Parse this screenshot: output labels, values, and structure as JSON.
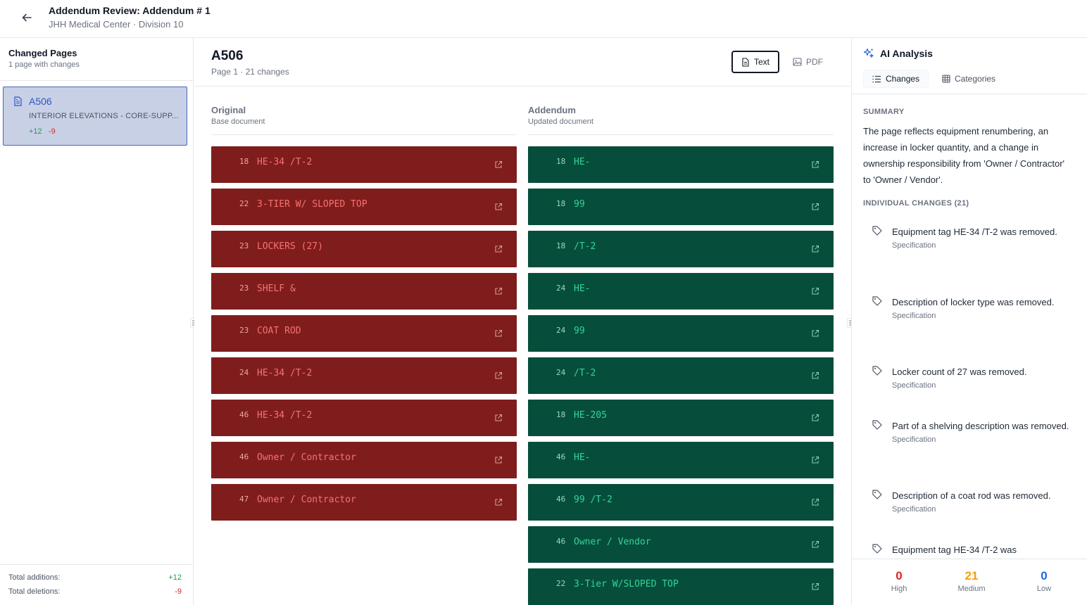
{
  "header": {
    "title": "Addendum Review: Addendum # 1",
    "subtitle": "JHH Medical Center · Division 10"
  },
  "left_panel": {
    "title": "Changed Pages",
    "subtitle": "1 page with changes",
    "pages": [
      {
        "name": "A506",
        "description": "INTERIOR ELEVATIONS - CORE-SUPP...",
        "additions": "+12",
        "deletions": "-9"
      }
    ],
    "footer": {
      "additions_label": "Total additions:",
      "additions_value": "+12",
      "deletions_label": "Total deletions:",
      "deletions_value": "-9"
    }
  },
  "main": {
    "page_title": "A506",
    "page_sub": "Page 1 · 21 changes",
    "view_text_label": "Text",
    "view_pdf_label": "PDF",
    "original": {
      "title": "Original",
      "subtitle": "Base document",
      "rows": [
        {
          "line": "18",
          "text": "HE-34 /T-2"
        },
        {
          "line": "22",
          "text": "3-TIER W/ SLOPED TOP"
        },
        {
          "line": "23",
          "text": "LOCKERS (27)"
        },
        {
          "line": "23",
          "text": "SHELF &"
        },
        {
          "line": "23",
          "text": "COAT ROD"
        },
        {
          "line": "24",
          "text": "HE-34 /T-2"
        },
        {
          "line": "46",
          "text": "HE-34 /T-2"
        },
        {
          "line": "46",
          "text": "Owner / Contractor"
        },
        {
          "line": "47",
          "text": "Owner / Contractor"
        }
      ]
    },
    "addendum": {
      "title": "Addendum",
      "subtitle": "Updated document",
      "rows": [
        {
          "line": "18",
          "text": "HE-"
        },
        {
          "line": "18",
          "text": "99"
        },
        {
          "line": "18",
          "text": "/T-2"
        },
        {
          "line": "24",
          "text": "HE-"
        },
        {
          "line": "24",
          "text": "99"
        },
        {
          "line": "24",
          "text": "/T-2"
        },
        {
          "line": "18",
          "text": "HE-205"
        },
        {
          "line": "46",
          "text": "HE-"
        },
        {
          "line": "46",
          "text": "99 /T-2"
        },
        {
          "line": "46",
          "text": "Owner / Vendor"
        },
        {
          "line": "22",
          "text": "3-Tier W/SLOPED TOP"
        }
      ]
    }
  },
  "ai_panel": {
    "title": "AI Analysis",
    "tabs": {
      "changes": "Changes",
      "categories": "Categories"
    },
    "summary_label": "SUMMARY",
    "summary_text": "The page reflects equipment renumbering, an increase in locker quantity, and a change in ownership responsibility from 'Owner / Contractor' to 'Owner / Vendor'.",
    "individual_label": "INDIVIDUAL CHANGES (21)",
    "changes": [
      {
        "text": "Equipment tag HE-34 /T-2 was removed.",
        "category": "Specification"
      },
      {
        "text": "Description of locker type was removed.",
        "category": "Specification"
      },
      {
        "text": "Locker count of 27 was removed.",
        "category": "Specification"
      },
      {
        "text": "Part of a shelving description was removed.",
        "category": "Specification"
      },
      {
        "text": "Description of a coat rod was removed.",
        "category": "Specification"
      },
      {
        "text": "Equipment tag HE-34 /T-2 was",
        "category": ""
      }
    ],
    "stats": {
      "high_value": "0",
      "high_label": "High",
      "medium_value": "21",
      "medium_label": "Medium",
      "low_value": "0",
      "low_label": "Low"
    },
    "colors": {
      "high": "#dc2626",
      "medium": "#f59e0b",
      "low": "#2563eb"
    }
  }
}
